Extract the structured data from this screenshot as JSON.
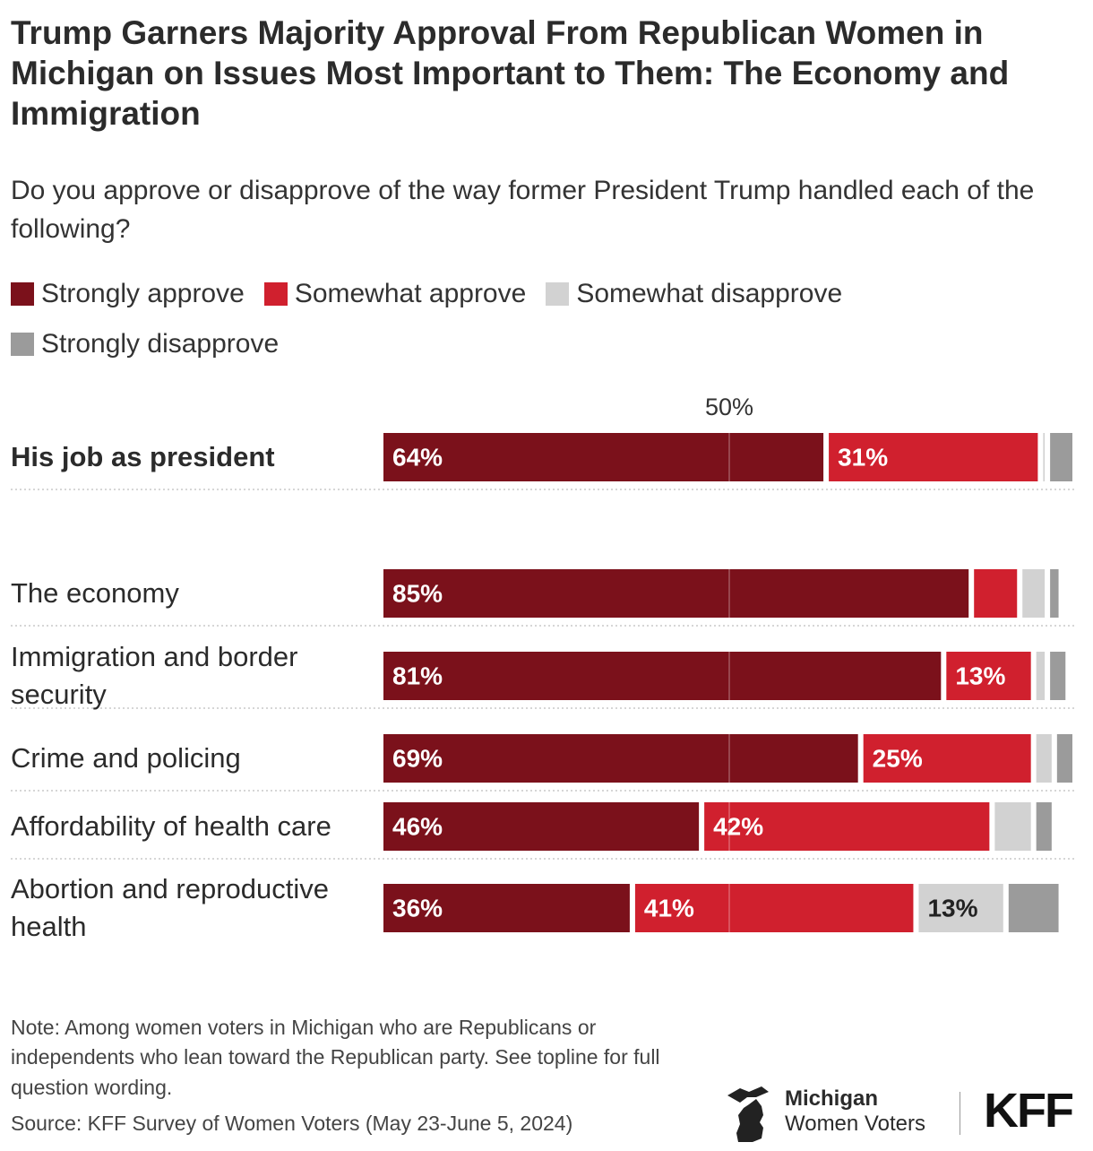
{
  "chart_data": {
    "type": "bar",
    "orientation": "horizontal",
    "stacked": true,
    "title": "Trump Garners Majority Approval From Republican Women in Michigan on Issues Most Important to Them: The Economy and Immigration",
    "subtitle": "Do you approve or disapprove of the way former President Trump handled each of the following?",
    "categories": [
      "His job as president",
      "The economy",
      "Immigration and border security",
      "Crime and policing",
      "Affordability of health care",
      "Abortion and reproductive health"
    ],
    "series": [
      {
        "name": "Strongly approve",
        "color": "#7b111b",
        "values": [
          64,
          85,
          81,
          69,
          46,
          36
        ],
        "value_labels": [
          "64%",
          "85%",
          "81%",
          "69%",
          "46%",
          "36%"
        ]
      },
      {
        "name": "Somewhat approve",
        "color": "#d0202e",
        "values": [
          31,
          7,
          13,
          25,
          42,
          41
        ],
        "value_labels": [
          "31%",
          null,
          "13%",
          "25%",
          "42%",
          "41%"
        ]
      },
      {
        "name": "Somewhat disapprove",
        "color": "#d2d2d2",
        "values": [
          1,
          4,
          2,
          3,
          6,
          13
        ],
        "value_labels": [
          null,
          null,
          null,
          null,
          null,
          "13%"
        ]
      },
      {
        "name": "Strongly disapprove",
        "color": "#9b9b9b",
        "values": [
          4,
          2,
          3,
          3,
          3,
          8
        ],
        "value_labels": [
          null,
          null,
          null,
          null,
          null,
          null
        ]
      }
    ],
    "xlim": [
      0,
      100
    ],
    "xticks": [
      {
        "value": 50,
        "label": "50%"
      }
    ],
    "grid": true,
    "note": "Note: Among women voters in Michigan who are Republicans or independents who lean toward the Republican party. See topline for full question wording.",
    "source": "Source: KFF Survey of Women Voters (May 23-June 5, 2024)"
  },
  "branding": {
    "line1": "Michigan",
    "line2": "Women Voters",
    "logo": "KFF"
  }
}
